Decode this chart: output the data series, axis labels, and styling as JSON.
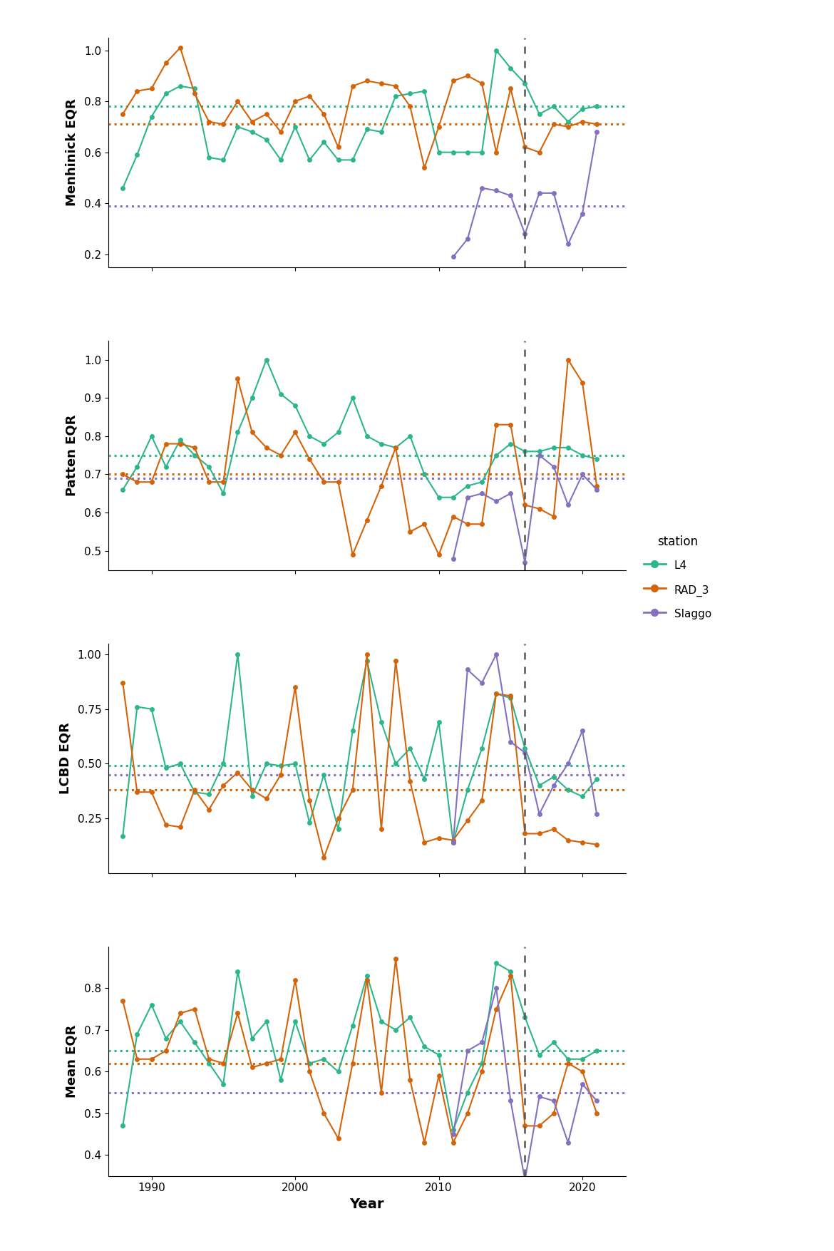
{
  "colors": {
    "L4": "#2db68c",
    "RAD_3": "#d4640a",
    "Slaggo": "#8470c0"
  },
  "assessment_year": 2016,
  "menhinick": {
    "L4": {
      "years": [
        1988,
        1989,
        1990,
        1991,
        1992,
        1993,
        1994,
        1995,
        1996,
        1997,
        1998,
        1999,
        2000,
        2001,
        2002,
        2003,
        2004,
        2005,
        2006,
        2007,
        2008,
        2009,
        2010,
        2011,
        2012,
        2013,
        2014,
        2015,
        2016,
        2017,
        2018,
        2019,
        2020,
        2021
      ],
      "values": [
        0.46,
        0.59,
        0.74,
        0.83,
        0.86,
        0.85,
        0.58,
        0.57,
        0.7,
        0.68,
        0.65,
        0.57,
        0.7,
        0.57,
        0.64,
        0.57,
        0.57,
        0.69,
        0.68,
        0.82,
        0.83,
        0.84,
        0.6,
        0.6,
        0.6,
        0.6,
        1.0,
        0.93,
        0.87,
        0.75,
        0.78,
        0.72,
        0.77,
        0.78
      ],
      "avg": 0.78
    },
    "RAD_3": {
      "years": [
        1988,
        1989,
        1990,
        1991,
        1992,
        1993,
        1994,
        1995,
        1996,
        1997,
        1998,
        1999,
        2000,
        2001,
        2002,
        2003,
        2004,
        2005,
        2006,
        2007,
        2008,
        2009,
        2010,
        2011,
        2012,
        2013,
        2014,
        2015,
        2016,
        2017,
        2018,
        2019,
        2020,
        2021
      ],
      "values": [
        0.75,
        0.84,
        0.85,
        0.95,
        1.01,
        0.83,
        0.72,
        0.71,
        0.8,
        0.72,
        0.75,
        0.68,
        0.8,
        0.82,
        0.75,
        0.62,
        0.86,
        0.88,
        0.87,
        0.86,
        0.78,
        0.54,
        0.7,
        0.88,
        0.9,
        0.87,
        0.6,
        0.85,
        0.62,
        0.6,
        0.71,
        0.7,
        0.72,
        0.71
      ],
      "avg": 0.71
    },
    "Slaggo": {
      "years": [
        2011,
        2012,
        2013,
        2014,
        2015,
        2016,
        2017,
        2018,
        2019,
        2020,
        2021
      ],
      "values": [
        0.19,
        0.26,
        0.46,
        0.45,
        0.43,
        0.28,
        0.44,
        0.44,
        0.24,
        0.36,
        0.68
      ],
      "avg": 0.39
    },
    "ylim": [
      0.15,
      1.05
    ],
    "yticks": [
      0.2,
      0.4,
      0.6,
      0.8,
      1.0
    ],
    "ylabel": "Menhinick EQR"
  },
  "patten": {
    "L4": {
      "years": [
        1988,
        1989,
        1990,
        1991,
        1992,
        1993,
        1994,
        1995,
        1996,
        1997,
        1998,
        1999,
        2000,
        2001,
        2002,
        2003,
        2004,
        2005,
        2006,
        2007,
        2008,
        2009,
        2010,
        2011,
        2012,
        2013,
        2014,
        2015,
        2016,
        2017,
        2018,
        2019,
        2020,
        2021
      ],
      "values": [
        0.66,
        0.72,
        0.8,
        0.72,
        0.79,
        0.75,
        0.72,
        0.65,
        0.81,
        0.9,
        1.0,
        0.91,
        0.88,
        0.8,
        0.78,
        0.81,
        0.9,
        0.8,
        0.78,
        0.77,
        0.8,
        0.7,
        0.64,
        0.64,
        0.67,
        0.68,
        0.75,
        0.78,
        0.76,
        0.76,
        0.77,
        0.77,
        0.75,
        0.74
      ],
      "avg": 0.75
    },
    "RAD_3": {
      "years": [
        1988,
        1989,
        1990,
        1991,
        1992,
        1993,
        1994,
        1995,
        1996,
        1997,
        1998,
        1999,
        2000,
        2001,
        2002,
        2003,
        2004,
        2005,
        2006,
        2007,
        2008,
        2009,
        2010,
        2011,
        2012,
        2013,
        2014,
        2015,
        2016,
        2017,
        2018,
        2019,
        2020,
        2021
      ],
      "values": [
        0.7,
        0.68,
        0.68,
        0.78,
        0.78,
        0.77,
        0.68,
        0.68,
        0.95,
        0.81,
        0.77,
        0.75,
        0.81,
        0.74,
        0.68,
        0.68,
        0.49,
        0.58,
        0.67,
        0.77,
        0.55,
        0.57,
        0.49,
        0.59,
        0.57,
        0.57,
        0.83,
        0.83,
        0.62,
        0.61,
        0.59,
        1.0,
        0.94,
        0.67
      ],
      "avg": 0.7
    },
    "Slaggo": {
      "years": [
        2011,
        2012,
        2013,
        2014,
        2015,
        2016,
        2017,
        2018,
        2019,
        2020,
        2021
      ],
      "values": [
        0.48,
        0.64,
        0.65,
        0.63,
        0.65,
        0.47,
        0.75,
        0.72,
        0.62,
        0.7,
        0.66
      ],
      "avg": 0.69
    },
    "ylim": [
      0.45,
      1.05
    ],
    "yticks": [
      0.5,
      0.6,
      0.7,
      0.8,
      0.9,
      1.0
    ],
    "ylabel": "Patten EQR"
  },
  "lcbd": {
    "L4": {
      "years": [
        1988,
        1989,
        1990,
        1991,
        1992,
        1993,
        1994,
        1995,
        1996,
        1997,
        1998,
        1999,
        2000,
        2001,
        2002,
        2003,
        2004,
        2005,
        2006,
        2007,
        2008,
        2009,
        2010,
        2011,
        2012,
        2013,
        2014,
        2015,
        2016,
        2017,
        2018,
        2019,
        2020,
        2021
      ],
      "values": [
        0.17,
        0.76,
        0.75,
        0.48,
        0.5,
        0.37,
        0.36,
        0.5,
        1.0,
        0.35,
        0.5,
        0.49,
        0.5,
        0.23,
        0.45,
        0.2,
        0.65,
        0.97,
        0.69,
        0.5,
        0.57,
        0.43,
        0.69,
        0.14,
        0.38,
        0.57,
        0.82,
        0.8,
        0.57,
        0.4,
        0.44,
        0.38,
        0.35,
        0.43
      ],
      "avg": 0.49
    },
    "RAD_3": {
      "years": [
        1988,
        1989,
        1990,
        1991,
        1992,
        1993,
        1994,
        1995,
        1996,
        1997,
        1998,
        1999,
        2000,
        2001,
        2002,
        2003,
        2004,
        2005,
        2006,
        2007,
        2008,
        2009,
        2010,
        2011,
        2012,
        2013,
        2014,
        2015,
        2016,
        2017,
        2018,
        2019,
        2020,
        2021
      ],
      "values": [
        0.87,
        0.37,
        0.37,
        0.22,
        0.21,
        0.38,
        0.29,
        0.4,
        0.46,
        0.38,
        0.34,
        0.45,
        0.85,
        0.33,
        0.07,
        0.25,
        0.38,
        1.0,
        0.2,
        0.97,
        0.42,
        0.14,
        0.16,
        0.15,
        0.24,
        0.33,
        0.82,
        0.81,
        0.18,
        0.18,
        0.2,
        0.15,
        0.14,
        0.13
      ],
      "avg": 0.38
    },
    "Slaggo": {
      "years": [
        2011,
        2012,
        2013,
        2014,
        2015,
        2016,
        2017,
        2018,
        2019,
        2020,
        2021
      ],
      "values": [
        0.14,
        0.93,
        0.87,
        1.0,
        0.6,
        0.55,
        0.27,
        0.4,
        0.5,
        0.65,
        0.27
      ],
      "avg": 0.45
    },
    "ylim": [
      0.0,
      1.05
    ],
    "yticks": [
      0.25,
      0.5,
      0.75,
      1.0
    ],
    "ylabel": "LCBD EQR"
  },
  "mean": {
    "L4": {
      "years": [
        1988,
        1989,
        1990,
        1991,
        1992,
        1993,
        1994,
        1995,
        1996,
        1997,
        1998,
        1999,
        2000,
        2001,
        2002,
        2003,
        2004,
        2005,
        2006,
        2007,
        2008,
        2009,
        2010,
        2011,
        2012,
        2013,
        2014,
        2015,
        2016,
        2017,
        2018,
        2019,
        2020,
        2021
      ],
      "values": [
        0.47,
        0.69,
        0.76,
        0.68,
        0.72,
        0.67,
        0.62,
        0.57,
        0.84,
        0.68,
        0.72,
        0.58,
        0.72,
        0.62,
        0.63,
        0.6,
        0.71,
        0.83,
        0.72,
        0.7,
        0.73,
        0.66,
        0.64,
        0.46,
        0.55,
        0.62,
        0.86,
        0.84,
        0.73,
        0.64,
        0.67,
        0.63,
        0.63,
        0.65
      ],
      "avg": 0.65
    },
    "RAD_3": {
      "years": [
        1988,
        1989,
        1990,
        1991,
        1992,
        1993,
        1994,
        1995,
        1996,
        1997,
        1998,
        1999,
        2000,
        2001,
        2002,
        2003,
        2004,
        2005,
        2006,
        2007,
        2008,
        2009,
        2010,
        2011,
        2012,
        2013,
        2014,
        2015,
        2016,
        2017,
        2018,
        2019,
        2020,
        2021
      ],
      "values": [
        0.77,
        0.63,
        0.63,
        0.65,
        0.74,
        0.75,
        0.63,
        0.62,
        0.74,
        0.61,
        0.62,
        0.63,
        0.82,
        0.6,
        0.5,
        0.44,
        0.62,
        0.82,
        0.55,
        0.87,
        0.58,
        0.43,
        0.59,
        0.43,
        0.5,
        0.6,
        0.75,
        0.83,
        0.47,
        0.47,
        0.5,
        0.62,
        0.6,
        0.5
      ],
      "avg": 0.62
    },
    "Slaggo": {
      "years": [
        2011,
        2012,
        2013,
        2014,
        2015,
        2016,
        2017,
        2018,
        2019,
        2020,
        2021
      ],
      "values": [
        0.45,
        0.65,
        0.67,
        0.8,
        0.53,
        0.34,
        0.54,
        0.53,
        0.43,
        0.57,
        0.53
      ],
      "avg": 0.55
    },
    "ylim": [
      0.35,
      0.9
    ],
    "yticks": [
      0.4,
      0.5,
      0.6,
      0.7,
      0.8
    ],
    "ylabel": "Mean EQR"
  },
  "legend": {
    "title": "station",
    "entries": [
      "L4",
      "RAD_3",
      "Slaggo"
    ]
  }
}
